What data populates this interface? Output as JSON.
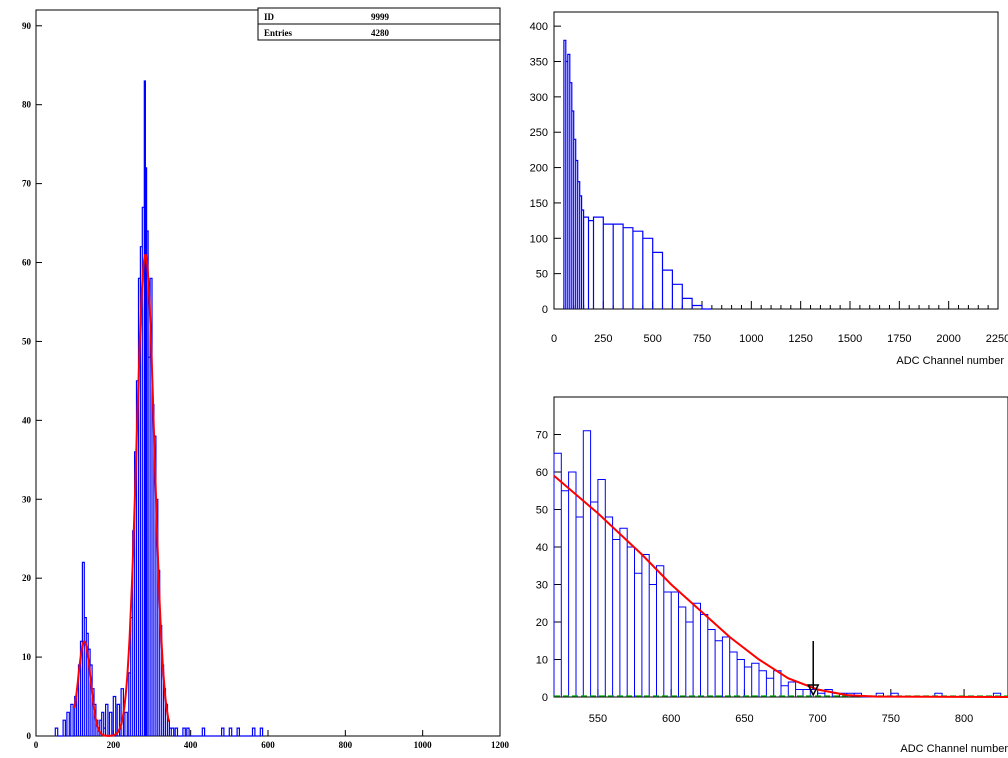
{
  "colors": {
    "histogram": "#0000ff",
    "fit": "#ff0000",
    "baseline": "#00aa00",
    "axes": "#000000",
    "background": "#ffffff"
  },
  "chart_data": [
    {
      "type": "histogram",
      "stats_box": {
        "rows": [
          {
            "label": "ID",
            "value": "9999"
          },
          {
            "label": "Entries",
            "value": "4280"
          }
        ]
      },
      "xlim": [
        0,
        1200
      ],
      "ylim": [
        0,
        92
      ],
      "x_ticks": [
        "0",
        "200",
        "400",
        "600",
        "800",
        "1000",
        "1200"
      ],
      "y_ticks": [
        "0",
        "10",
        "20",
        "30",
        "40",
        "50",
        "60",
        "70",
        "80",
        "90"
      ],
      "xlabel": "",
      "ylabel": "",
      "series": [
        {
          "kind": "histogram",
          "x": [
            50,
            60,
            70,
            80,
            90,
            100,
            105,
            110,
            115,
            120,
            125,
            130,
            135,
            140,
            145,
            150,
            155,
            160,
            165,
            170,
            175,
            180,
            190,
            200,
            210,
            220,
            230,
            240,
            245,
            250,
            255,
            260,
            265,
            270,
            275,
            280,
            283,
            286,
            290,
            295,
            300,
            305,
            310,
            315,
            320,
            325,
            330,
            335,
            340,
            345,
            350,
            360,
            370,
            380,
            390,
            410,
            430,
            480,
            500,
            520,
            560,
            580
          ],
          "values": [
            1,
            0,
            2,
            3,
            4,
            5,
            6,
            9,
            12,
            22,
            15,
            13,
            11,
            9,
            6,
            4,
            2,
            1,
            2,
            3,
            1,
            4,
            3,
            5,
            4,
            6,
            3,
            8,
            15,
            26,
            36,
            45,
            58,
            62,
            67,
            83,
            72,
            64,
            48,
            58,
            42,
            38,
            30,
            21,
            14,
            9,
            6,
            4,
            2,
            1,
            1,
            1,
            0,
            1,
            1,
            0,
            1,
            1,
            1,
            1,
            1,
            1
          ]
        },
        {
          "kind": "fit",
          "peaks": [
            {
              "mean": 125,
              "sigma": 16,
              "amplitude": 12
            },
            {
              "mean": 283,
              "sigma": 23,
              "amplitude": 61
            }
          ],
          "range": [
            100,
            345
          ]
        }
      ]
    },
    {
      "type": "histogram",
      "xlim": [
        0,
        2250
      ],
      "ylim": [
        0,
        420
      ],
      "x_ticks": [
        "0",
        "250",
        "500",
        "750",
        "1000",
        "1250",
        "1500",
        "1750",
        "2000",
        "2250"
      ],
      "y_ticks": [
        "0",
        "50",
        "100",
        "150",
        "200",
        "250",
        "300",
        "350",
        "400"
      ],
      "xlabel": "ADC Channel number",
      "ylabel": "",
      "series": [
        {
          "kind": "histogram",
          "x": [
            50,
            60,
            70,
            80,
            90,
            100,
            110,
            120,
            130,
            140,
            150,
            175,
            200,
            250,
            300,
            350,
            400,
            450,
            500,
            550,
            600,
            650,
            700,
            750
          ],
          "values": [
            380,
            350,
            360,
            320,
            280,
            240,
            210,
            180,
            160,
            140,
            130,
            125,
            130,
            120,
            120,
            115,
            110,
            100,
            80,
            55,
            35,
            15,
            5,
            0
          ]
        }
      ]
    },
    {
      "type": "histogram",
      "xlim": [
        520,
        830
      ],
      "ylim": [
        0,
        80
      ],
      "x_ticks": [
        "550",
        "600",
        "650",
        "700",
        "750",
        "800"
      ],
      "y_ticks": [
        "0",
        "10",
        "20",
        "30",
        "40",
        "50",
        "60",
        "70"
      ],
      "xlabel": "ADC Channel number",
      "ylabel": "",
      "series": [
        {
          "kind": "histogram",
          "x": [
            520,
            525,
            530,
            535,
            540,
            545,
            550,
            555,
            560,
            565,
            570,
            575,
            580,
            585,
            590,
            595,
            600,
            605,
            610,
            615,
            620,
            625,
            630,
            635,
            640,
            645,
            650,
            655,
            660,
            665,
            670,
            675,
            680,
            685,
            690,
            695,
            700,
            705,
            710,
            715,
            720,
            725,
            730,
            740,
            750,
            760,
            780,
            800,
            820
          ],
          "values": [
            65,
            55,
            60,
            48,
            71,
            52,
            58,
            48,
            42,
            45,
            40,
            33,
            38,
            30,
            35,
            28,
            28,
            24,
            20,
            25,
            22,
            18,
            15,
            16,
            12,
            10,
            8,
            9,
            7,
            5,
            7,
            3,
            4,
            2,
            2,
            2,
            1,
            2,
            1,
            1,
            1,
            1,
            0,
            1,
            1,
            0,
            1,
            0,
            1
          ]
        },
        {
          "kind": "fit",
          "points": [
            [
              520,
              59
            ],
            [
              550,
              49
            ],
            [
              580,
              38
            ],
            [
              600,
              30
            ],
            [
              620,
              23
            ],
            [
              640,
              16
            ],
            [
              660,
              10
            ],
            [
              680,
              5
            ],
            [
              700,
              2
            ],
            [
              720,
              0.5
            ],
            [
              740,
              0.1
            ],
            [
              830,
              0
            ]
          ]
        },
        {
          "kind": "baseline",
          "value": 0
        },
        {
          "kind": "marker",
          "x": 697
        }
      ]
    }
  ]
}
